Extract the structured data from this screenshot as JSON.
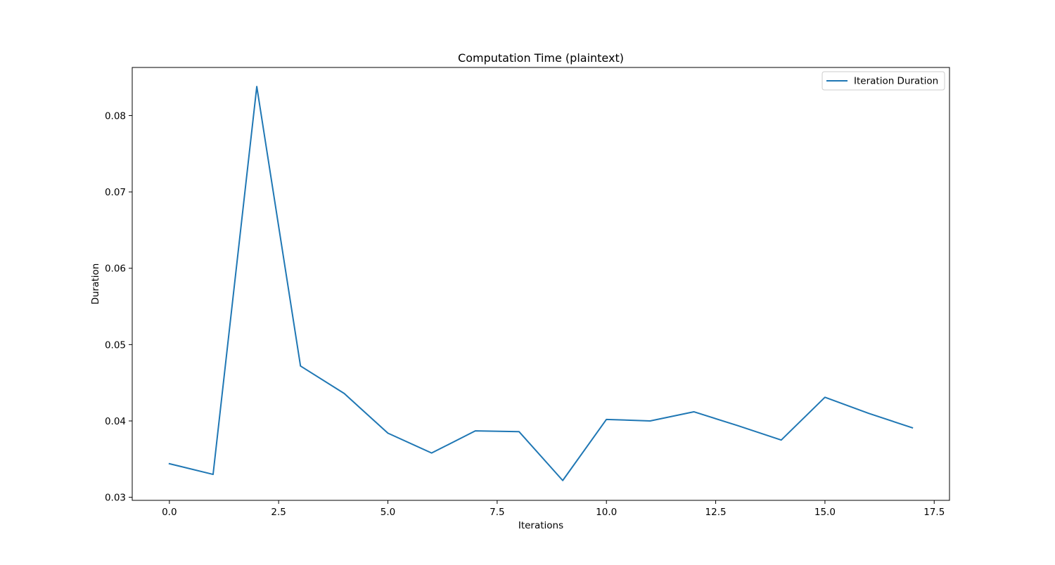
{
  "chart_data": {
    "type": "line",
    "title": "Computation Time (plaintext)",
    "xlabel": "Iterations",
    "ylabel": "Duration",
    "xlim": [
      -0.85,
      17.85
    ],
    "ylim": [
      0.0296,
      0.0863
    ],
    "x_ticks": [
      0.0,
      2.5,
      5.0,
      7.5,
      10.0,
      12.5,
      15.0,
      17.5
    ],
    "x_tick_labels": [
      "0.0",
      "2.5",
      "5.0",
      "7.5",
      "10.0",
      "12.5",
      "15.0",
      "17.5"
    ],
    "y_ticks": [
      0.03,
      0.04,
      0.05,
      0.06,
      0.07,
      0.08
    ],
    "y_tick_labels": [
      "0.03",
      "0.04",
      "0.05",
      "0.06",
      "0.07",
      "0.08"
    ],
    "grid": false,
    "legend_position": "top-right",
    "series": [
      {
        "name": "Iteration Duration",
        "color": "#1f77b4",
        "x": [
          0,
          1,
          2,
          3,
          4,
          5,
          6,
          7,
          8,
          9,
          10,
          11,
          12,
          13,
          14,
          15,
          16,
          17
        ],
        "values": [
          0.0344,
          0.033,
          0.0838,
          0.0472,
          0.0436,
          0.0384,
          0.0358,
          0.0387,
          0.0386,
          0.0322,
          0.0402,
          0.04,
          0.0412,
          0.0394,
          0.0375,
          0.0431,
          0.041,
          0.0391
        ]
      }
    ]
  }
}
